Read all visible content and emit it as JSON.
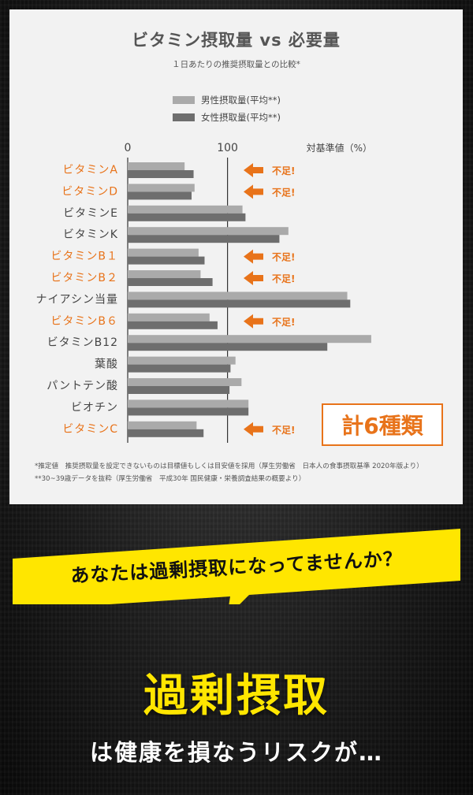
{
  "chart_data": {
    "type": "bar",
    "orientation": "horizontal",
    "title": "ビタミン摂取量 vs 必要量",
    "subtitle": "１日あたりの推奨摂取量との比較*",
    "xlabel": "対基準値（%）",
    "xticks": [
      "0",
      "100"
    ],
    "categories": [
      "ビタミンA",
      "ビタミンD",
      "ビタミンE",
      "ビタミンK",
      "ビタミンB１",
      "ビタミンB２",
      "ナイアシン当量",
      "ビタミンB６",
      "ビタミンB12",
      "葉酸",
      "パントテン酸",
      "ビオチン",
      "ビタミンC"
    ],
    "highlighted": [
      true,
      true,
      false,
      false,
      true,
      true,
      false,
      true,
      false,
      false,
      false,
      false,
      true
    ],
    "series": [
      {
        "name": "男性摂取量(平均**)",
        "color": "#aaaaaa",
        "values": [
          57,
          67,
          115,
          161,
          71,
          73,
          220,
          82,
          244,
          108,
          114,
          121,
          69
        ]
      },
      {
        "name": "女性摂取量(平均**)",
        "color": "#6e6e6e",
        "values": [
          66,
          64,
          118,
          152,
          77,
          85,
          223,
          90,
          200,
          103,
          102,
          121,
          76
        ]
      }
    ],
    "xlim": [
      0,
      250
    ],
    "reference_line": 100,
    "deficient_label": "不足!",
    "legend_position": "top",
    "grid": false
  },
  "colors": {
    "highlight": "#e8731a",
    "normal_label": "#444444",
    "badge": "#e8731a",
    "accent_yellow": "#ffe600"
  },
  "badge": "計6種類",
  "notes": [
    "*推定値　推奨摂取量を設定できないものは目標値もしくは目安値を採用（厚生労働省　日本人の食事摂取基準 2020年版より）",
    "**30~39歳データを抜粋（厚生労働省　平成30年 国民健康・栄養調査結果の概要より）"
  ],
  "question": "あなたは過剰摂取になってませんか？",
  "headline": "過剰摂取",
  "subline": "は健康を損なうリスクが…"
}
